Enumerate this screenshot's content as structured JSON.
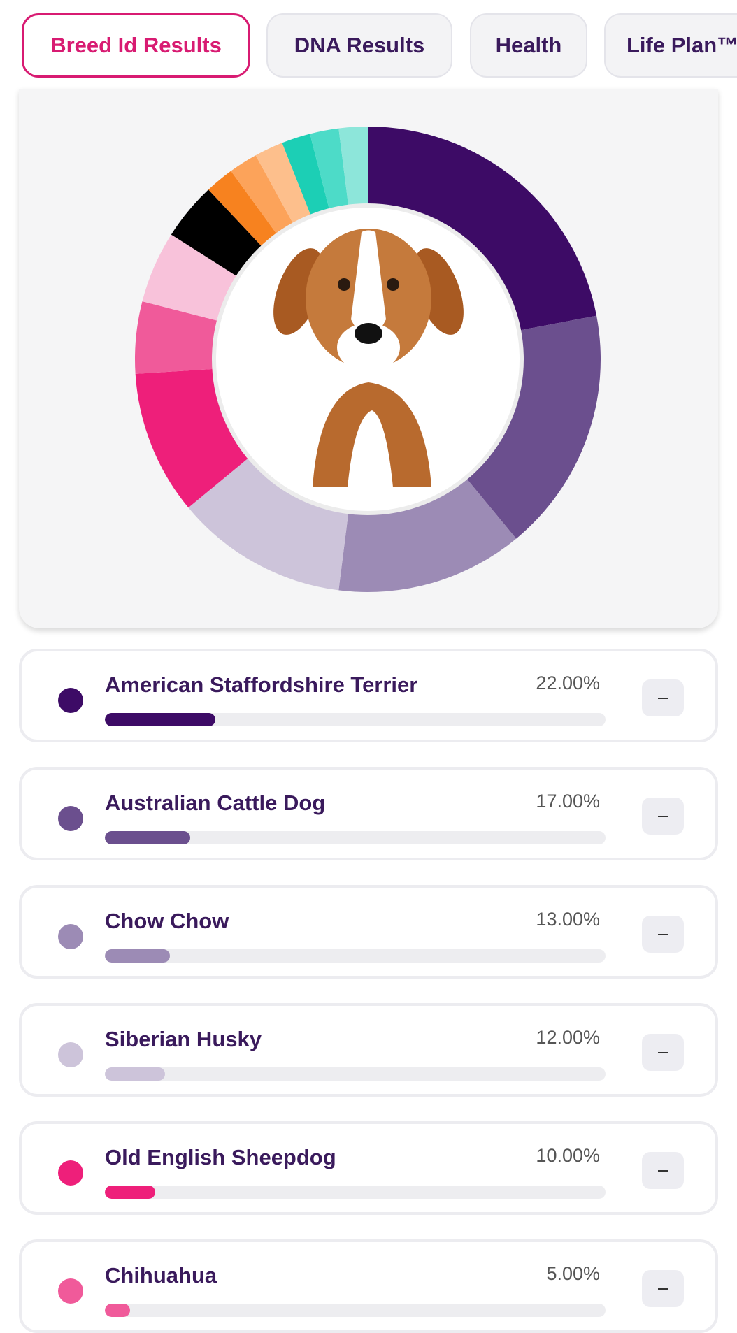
{
  "tabs": [
    "Breed Id Results",
    "DNA Results",
    "Health",
    "Life Plan™"
  ],
  "chart_data": {
    "type": "donut",
    "categories": [
      "American Staffordshire Terrier",
      "Australian Cattle Dog",
      "Chow Chow",
      "Siberian Husky",
      "Old English Sheepdog",
      "Chihuahua",
      null,
      null,
      null,
      null,
      null,
      null,
      null,
      null
    ],
    "values": [
      22,
      17,
      13,
      12,
      10,
      5,
      5,
      4,
      2,
      2,
      2,
      2,
      2,
      2
    ],
    "value_labels": [
      "22.00%",
      "17.00%",
      "13.00%",
      "12.00%",
      "10.00%",
      "5.00%",
      null,
      null,
      null,
      null,
      null,
      null,
      null,
      null
    ],
    "colors": [
      "#3d0b66",
      "#6b4f8e",
      "#9c8bb5",
      "#cdc4da",
      "#ee1f7a",
      "#f05a9a",
      "#f8c2da",
      "#000000",
      "#f7821f",
      "#fca35a",
      "#fdbf8c",
      "#1ccfb5",
      "#4ddbc8",
      "#8de6da"
    ]
  }
}
